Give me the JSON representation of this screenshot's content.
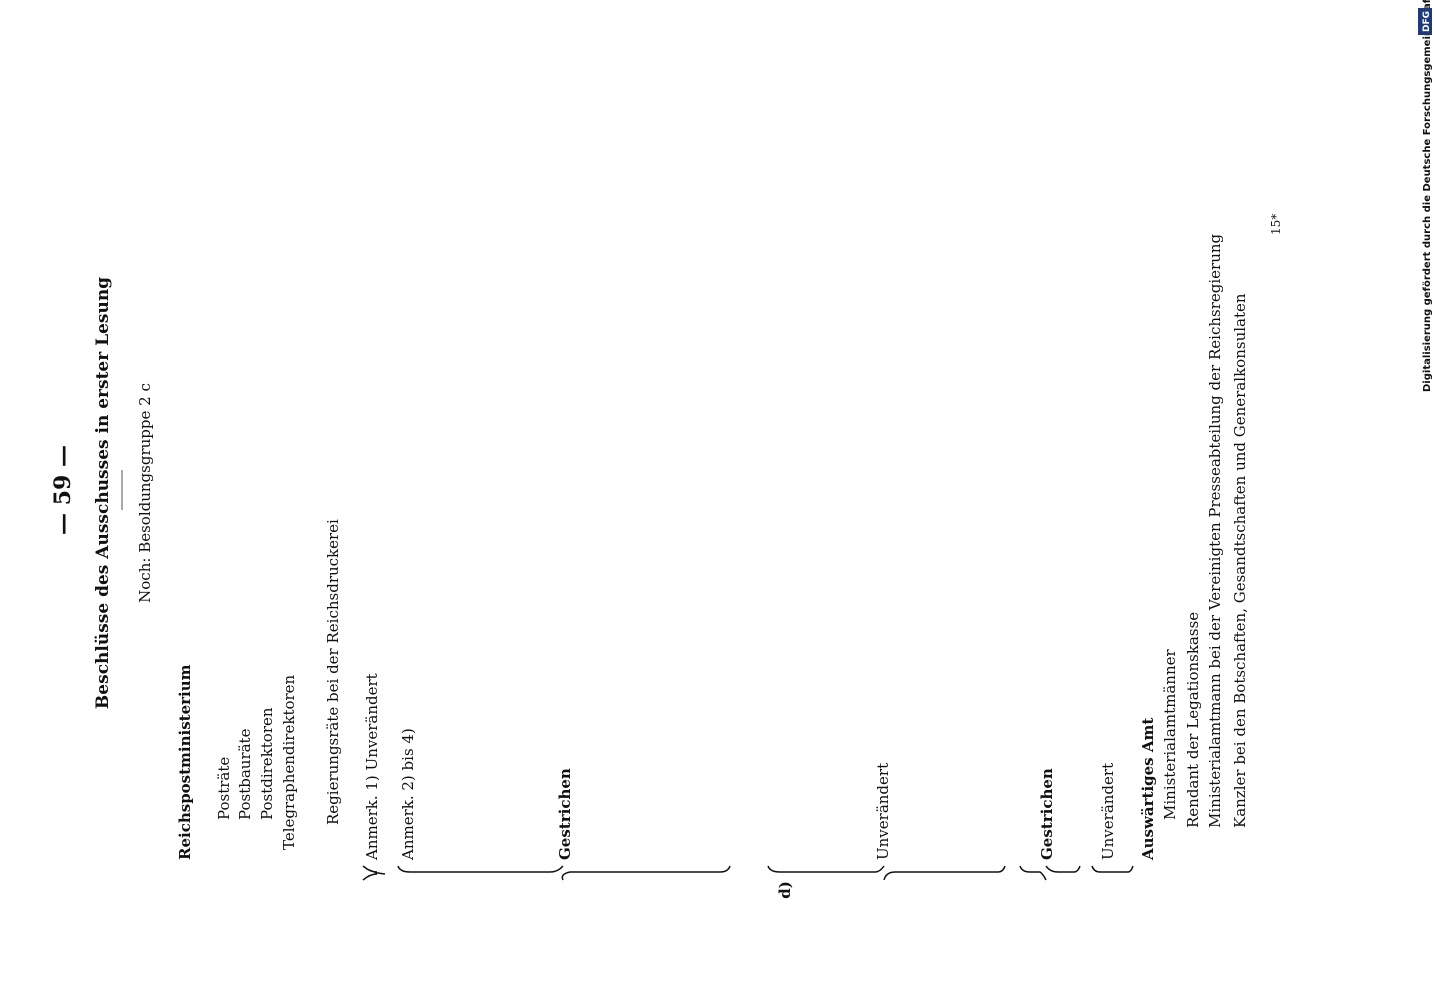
{
  "header": {
    "page_number": "— 59 —",
    "title": "Beschlüsse des Ausschusses in erster Lesung",
    "subtitle": "Noch: Besoldungsgruppe 2 c"
  },
  "sections": [
    {
      "heading": "Reichspostministerium",
      "items": [
        "Posträte",
        "Postbauräte",
        "Postdirektoren",
        "Telegraphendirektoren"
      ]
    },
    {
      "heading": "Regierungsräte bei der Reichsdruckerei"
    },
    {
      "heading": "Auswärtiges Amt",
      "items": [
        "Ministerialamtmänner",
        "Rendant der Legationskasse",
        "Ministerialamtmann bei der Vereinigten Presseabteilung der Reichsregierung",
        "Kanzler bei den Botschaften, Gesandtschaften und Generalkonsulaten"
      ]
    }
  ],
  "decisions": [
    "Anmerk. 1) Unverändert",
    "Anmerk. 2) bis 4)",
    "Gestrichen",
    "d)",
    "Unverändert",
    "Gestrichen",
    "Unverändert"
  ],
  "footer": {
    "page_mark": "15*",
    "funding_note": "Digitalisierung gefördert durch die Deutsche Forschungsgemeinschaft ·",
    "funder_logo": "DFG"
  }
}
